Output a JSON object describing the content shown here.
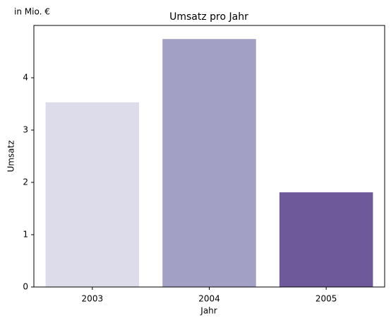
{
  "chart_data": {
    "type": "bar",
    "title": "Umsatz pro Jahr",
    "annotation": "in Mio. €",
    "x_label": "Jahr",
    "y_label": "Umsatz",
    "categories": [
      "2003",
      "2004",
      "2005"
    ],
    "values": [
      3.53,
      4.74,
      1.81
    ],
    "colors": [
      "#dcdcea",
      "#a3a0c5",
      "#6e5a9a"
    ],
    "ylim": [
      0,
      5
    ],
    "yticks": [
      0,
      1,
      2,
      3,
      4
    ],
    "grid": false
  }
}
